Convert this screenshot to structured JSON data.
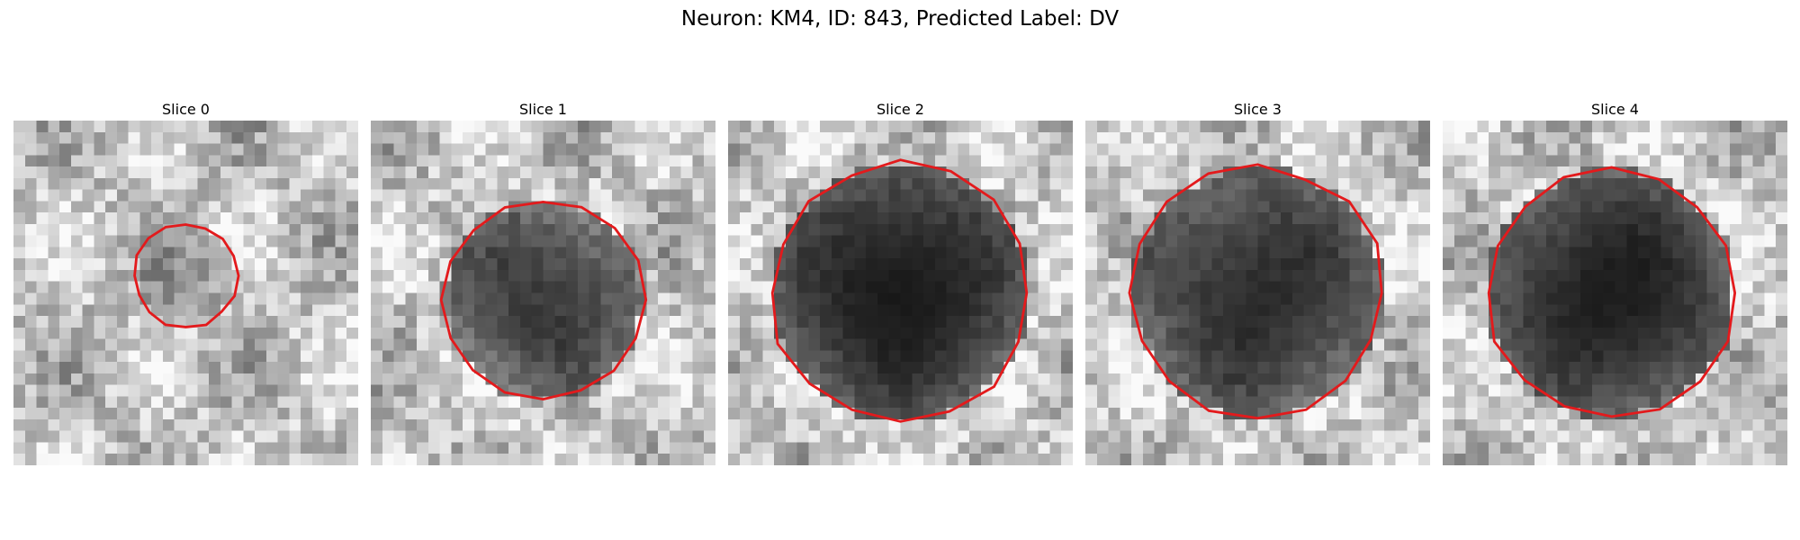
{
  "figure": {
    "title": "Neuron: KM4, ID: 843, Predicted Label: DV"
  },
  "contour_color": "#e31a1c",
  "panels": [
    {
      "title": "Slice 0",
      "icon": "grayscale-microscopy-patch",
      "contour_scale": 0.3,
      "blob_darkness": 0.25
    },
    {
      "title": "Slice 1",
      "icon": "grayscale-microscopy-patch",
      "contour_scale": 0.58,
      "blob_darkness": 0.75
    },
    {
      "title": "Slice 2",
      "icon": "grayscale-microscopy-patch",
      "contour_scale": 0.75,
      "blob_darkness": 0.92
    },
    {
      "title": "Slice 3",
      "icon": "grayscale-microscopy-patch",
      "contour_scale": 0.73,
      "blob_darkness": 0.82
    },
    {
      "title": "Slice 4",
      "icon": "grayscale-microscopy-patch",
      "contour_scale": 0.72,
      "blob_darkness": 0.9
    }
  ]
}
